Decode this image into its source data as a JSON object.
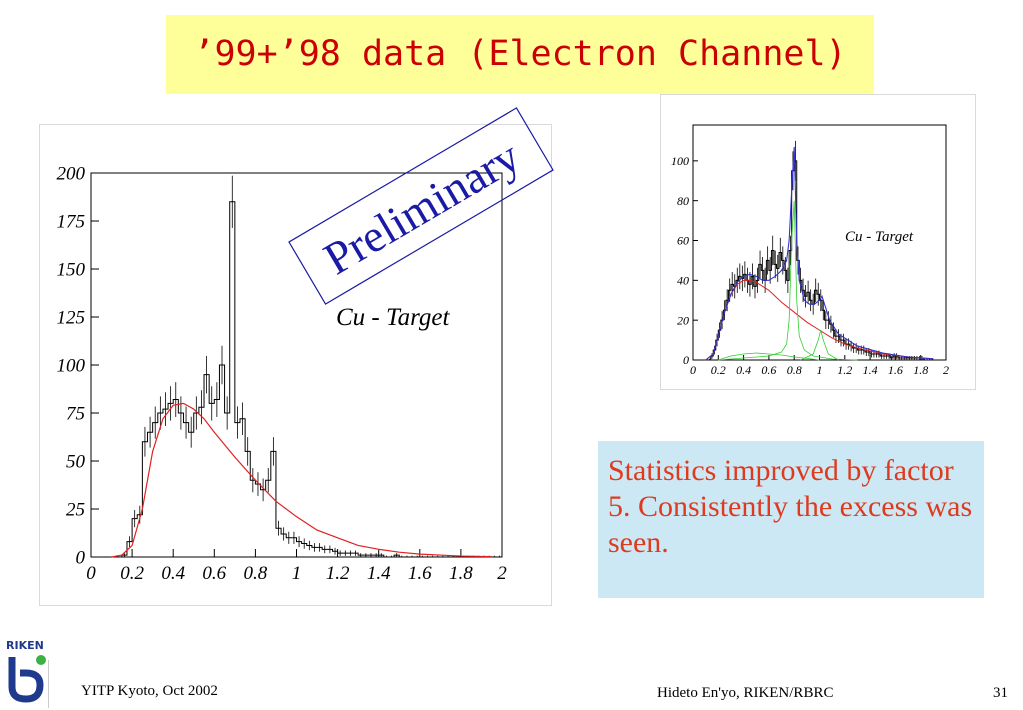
{
  "slide": {
    "title": "’99+’98 data (Electron Channel)",
    "watermark": "Preliminary",
    "note": "Statistics improved by factor 5. Consistently the excess was seen.",
    "footer_left": "YITP Kyoto, Oct 2002",
    "footer_center": "Hideto En'yo, RIKEN/RBRC",
    "page_number": "31",
    "logo_text": "RIKEN",
    "colors": {
      "title_bg": "#ffff99",
      "title_text": "#cc0000",
      "note_bg": "#cce8f5",
      "note_text": "#e03a1e",
      "watermark": "#1a1aa6",
      "fit_line": "#e02020",
      "bg_fit": "#cc33cc",
      "total_fit": "#3333cc",
      "component_fit": "#33cc33"
    }
  },
  "chart_data": [
    {
      "type": "histogram",
      "annotation": "Cu - Target",
      "xlim": [
        0,
        2
      ],
      "ylim": [
        0,
        200
      ],
      "xticks": [
        "0",
        "0.2",
        "0.4",
        "0.6",
        "0.8",
        "1",
        "1.2",
        "1.4",
        "1.6",
        "1.8",
        "2"
      ],
      "yticks": [
        "0",
        "25",
        "50",
        "75",
        "100",
        "125",
        "150",
        "175",
        "200"
      ],
      "bin_width": 0.025,
      "bins_x": [
        0.15,
        0.175,
        0.2,
        0.225,
        0.25,
        0.275,
        0.3,
        0.325,
        0.35,
        0.375,
        0.4,
        0.425,
        0.45,
        0.475,
        0.5,
        0.525,
        0.55,
        0.575,
        0.6,
        0.625,
        0.65,
        0.675,
        0.7,
        0.725,
        0.75,
        0.775,
        0.8,
        0.825,
        0.85,
        0.875,
        0.9,
        0.925,
        0.95,
        0.975,
        1.0,
        1.025,
        1.05,
        1.075,
        1.1,
        1.125,
        1.15,
        1.175,
        1.2,
        1.225,
        1.25,
        1.275,
        1.3,
        1.325,
        1.35,
        1.375,
        1.4,
        1.425,
        1.45,
        1.475,
        1.5,
        1.525,
        1.55,
        1.575,
        1.6,
        1.625,
        1.65,
        1.675,
        1.7,
        1.725,
        1.75,
        1.775,
        1.8,
        1.825,
        1.85,
        1.875,
        1.9,
        1.925,
        1.95,
        1.975
      ],
      "values": [
        1,
        8,
        20,
        22,
        60,
        65,
        70,
        75,
        77,
        80,
        82,
        75,
        70,
        65,
        75,
        78,
        95,
        80,
        82,
        100,
        75,
        185,
        70,
        72,
        55,
        40,
        38,
        35,
        40,
        55,
        15,
        12,
        10,
        10,
        8,
        7,
        6,
        5,
        5,
        4,
        4,
        3,
        2,
        2,
        2,
        2,
        1,
        1,
        1,
        1,
        1,
        0,
        0,
        1,
        0,
        0,
        0,
        0,
        0,
        0,
        0,
        0,
        0,
        0,
        0,
        0,
        0,
        0,
        0,
        0,
        0,
        0,
        0,
        0
      ],
      "fit": {
        "x": [
          0.1,
          0.15,
          0.2,
          0.25,
          0.3,
          0.35,
          0.4,
          0.45,
          0.5,
          0.55,
          0.6,
          0.7,
          0.8,
          0.9,
          1.0,
          1.1,
          1.2,
          1.3,
          1.4,
          1.5,
          1.6,
          1.7,
          1.8,
          1.9,
          1.95
        ],
        "y": [
          0,
          1,
          6,
          25,
          55,
          72,
          79,
          80,
          77,
          72,
          65,
          52,
          40,
          29,
          21,
          14,
          10,
          6,
          4,
          2.5,
          1.5,
          1,
          0.5,
          0.3,
          0.2
        ]
      }
    },
    {
      "type": "histogram",
      "annotation": "Cu - Target",
      "xlim": [
        0,
        2
      ],
      "ylim": [
        0,
        118
      ],
      "xticks": [
        "0",
        "0.2",
        "0.4",
        "0.6",
        "0.8",
        "1",
        "1.2",
        "1.4",
        "1.6",
        "1.8",
        "2"
      ],
      "yticks": [
        "0",
        "20",
        "40",
        "60",
        "80",
        "100"
      ],
      "bin_width": 0.02,
      "bins_x": [
        0.1,
        0.12,
        0.14,
        0.16,
        0.18,
        0.2,
        0.22,
        0.24,
        0.26,
        0.28,
        0.3,
        0.32,
        0.34,
        0.36,
        0.38,
        0.4,
        0.42,
        0.44,
        0.46,
        0.48,
        0.5,
        0.52,
        0.54,
        0.56,
        0.58,
        0.6,
        0.62,
        0.64,
        0.66,
        0.68,
        0.7,
        0.72,
        0.74,
        0.76,
        0.78,
        0.8,
        0.82,
        0.84,
        0.86,
        0.88,
        0.9,
        0.92,
        0.94,
        0.96,
        0.98,
        1.0,
        1.02,
        1.04,
        1.06,
        1.08,
        1.1,
        1.12,
        1.14,
        1.16,
        1.18,
        1.2,
        1.22,
        1.24,
        1.26,
        1.28,
        1.3,
        1.32,
        1.34,
        1.36,
        1.38,
        1.4,
        1.42,
        1.44,
        1.46,
        1.48,
        1.5,
        1.52,
        1.54,
        1.56,
        1.58,
        1.6,
        1.62,
        1.64,
        1.66,
        1.68,
        1.7,
        1.72,
        1.74,
        1.76,
        1.78,
        1.8,
        1.82,
        1.84,
        1.86,
        1.88
      ],
      "values": [
        0,
        0,
        2,
        5,
        10,
        15,
        20,
        25,
        30,
        35,
        38,
        37,
        40,
        42,
        41,
        43,
        40,
        38,
        42,
        37,
        40,
        48,
        45,
        40,
        50,
        45,
        55,
        48,
        46,
        54,
        50,
        45,
        40,
        55,
        95,
        100,
        50,
        40,
        35,
        32,
        34,
        30,
        28,
        35,
        33,
        30,
        25,
        20,
        20,
        18,
        15,
        12,
        12,
        10,
        10,
        8,
        8,
        7,
        6,
        6,
        5,
        5,
        5,
        4,
        4,
        3,
        3,
        3,
        3,
        2,
        2,
        2,
        2,
        1,
        2,
        2,
        1,
        1,
        1,
        1,
        1,
        1,
        1,
        1,
        1,
        1,
        0,
        0,
        0,
        0
      ],
      "fit_total": {
        "x": [
          0.1,
          0.16,
          0.2,
          0.25,
          0.3,
          0.35,
          0.4,
          0.45,
          0.5,
          0.55,
          0.6,
          0.65,
          0.7,
          0.74,
          0.76,
          0.78,
          0.8,
          0.82,
          0.84,
          0.88,
          0.92,
          0.96,
          1.0,
          1.02,
          1.04,
          1.08,
          1.15,
          1.3,
          1.5,
          1.7,
          1.9
        ],
        "y": [
          0,
          3,
          12,
          24,
          33,
          39,
          42,
          43,
          42,
          40,
          40,
          42,
          45,
          50,
          60,
          85,
          107,
          60,
          40,
          30,
          28,
          28,
          30,
          32,
          28,
          20,
          13,
          7,
          3.5,
          1.5,
          0.6
        ]
      },
      "fit_background": {
        "x": [
          0.1,
          0.16,
          0.2,
          0.25,
          0.3,
          0.35,
          0.4,
          0.45,
          0.5,
          0.6,
          0.7,
          0.8,
          0.9,
          1.0,
          1.1,
          1.2,
          1.3,
          1.5,
          1.7,
          1.9
        ],
        "y": [
          0,
          3,
          12,
          24,
          33,
          38,
          40,
          40,
          39,
          35,
          29,
          24,
          19,
          15,
          11,
          8,
          6,
          3,
          1.5,
          0.6
        ]
      },
      "fit_rho_omega": {
        "x": [
          0.2,
          0.4,
          0.6,
          0.7,
          0.74,
          0.76,
          0.78,
          0.8,
          0.82,
          0.84,
          0.88,
          0.95,
          1.1,
          1.3
        ],
        "y": [
          0,
          1,
          2,
          4,
          8,
          20,
          60,
          80,
          30,
          12,
          5,
          2,
          0.5,
          0
        ]
      },
      "fit_phi": {
        "x": [
          0.85,
          0.95,
          0.99,
          1.01,
          1.03,
          1.07,
          1.15
        ],
        "y": [
          0,
          3,
          10,
          15,
          10,
          3,
          0
        ]
      },
      "fit_low": {
        "x": [
          0.2,
          0.3,
          0.4,
          0.5,
          0.6,
          0.7,
          0.8,
          0.9,
          1.0
        ],
        "y": [
          0,
          2,
          3,
          3.5,
          3,
          2.5,
          1.5,
          0.8,
          0
        ]
      }
    }
  ]
}
